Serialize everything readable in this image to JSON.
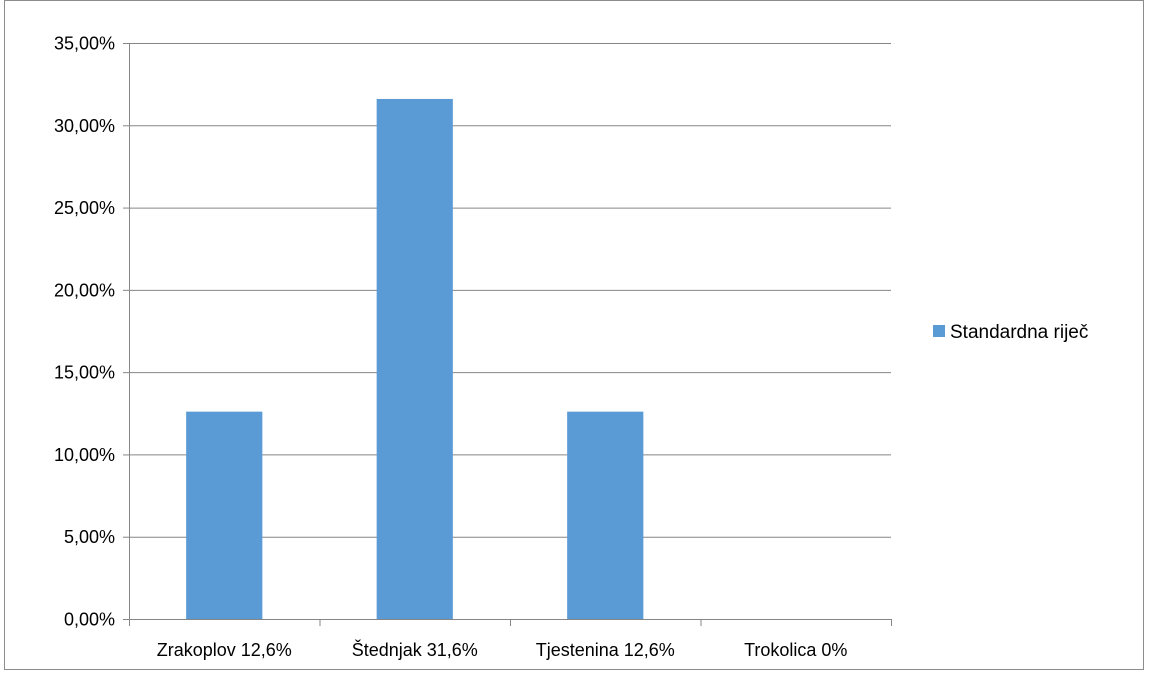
{
  "chart_data": {
    "type": "bar",
    "title": "",
    "xlabel": "",
    "ylabel": "",
    "categories": [
      "Zrakoplov 12,6%",
      "Štednjak 31,6%",
      "Tjestenina 12,6%",
      "Trokolica 0%"
    ],
    "series": [
      {
        "name": "Standardna riječ",
        "values": [
          12.6,
          31.6,
          12.6,
          0
        ],
        "color": "#5b9bd5"
      }
    ],
    "ylim": [
      0,
      35
    ],
    "yticks": [
      0,
      5,
      10,
      15,
      20,
      25,
      30,
      35
    ],
    "ytick_labels": [
      "0,00%",
      "5,00%",
      "10,00%",
      "15,00%",
      "20,00%",
      "25,00%",
      "30,00%",
      "35,00%"
    ],
    "grid": true,
    "gridline_color": "#868686",
    "legend": {
      "position": "right",
      "entries": [
        "Standardna riječ"
      ]
    }
  }
}
